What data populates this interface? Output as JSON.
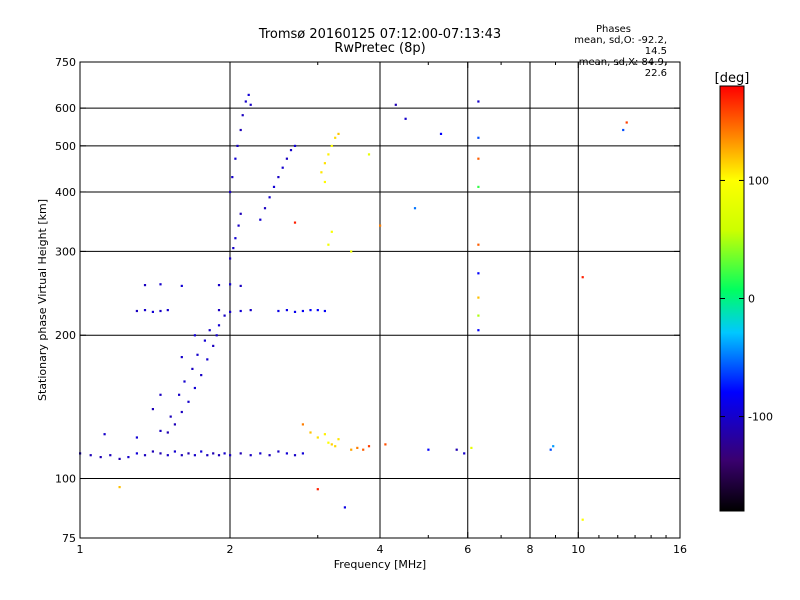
{
  "chart_data": {
    "type": "scatter",
    "title": "Tromsø 20160125 07:12:00-07:13:43",
    "subtitle": "RwPretec (8p)",
    "xlabel": "Frequency [MHz]",
    "ylabel": "Stationary phase Virtual Height [km]",
    "xscale": "log",
    "yscale": "log",
    "xlim": [
      1,
      16
    ],
    "ylim": [
      75,
      750
    ],
    "xticks": [
      1,
      2,
      4,
      6,
      8,
      10,
      16
    ],
    "xtick_labels": [
      "1",
      "2",
      "4",
      "6",
      "8",
      "10",
      "16"
    ],
    "xgrid": [
      2,
      4,
      6,
      8,
      10
    ],
    "yticks": [
      75,
      100,
      200,
      300,
      400,
      500,
      600,
      750
    ],
    "ytick_labels": [
      "75",
      "100",
      "200",
      "300",
      "400",
      "500",
      "600",
      "750"
    ],
    "ygrid": [
      100,
      200,
      300,
      400,
      500,
      600
    ],
    "grid": true,
    "phase_stats": {
      "title": "Phases",
      "line_o": "mean, sd,O: -92.2, 14.5",
      "line_x": "mean, sd,X:  84.9, 22.6"
    },
    "colorbar": {
      "label": "[deg]",
      "range": [
        -180,
        180
      ],
      "ticks": [
        -100,
        0,
        100
      ],
      "tick_labels": [
        "-100",
        "0",
        "100"
      ]
    },
    "points": [
      [
        1.0,
        113,
        -105
      ],
      [
        1.05,
        112,
        -108
      ],
      [
        1.1,
        111,
        -110
      ],
      [
        1.15,
        112,
        -106
      ],
      [
        1.2,
        110,
        -112
      ],
      [
        1.25,
        111,
        -100
      ],
      [
        1.3,
        113,
        -95
      ],
      [
        1.35,
        112,
        -104
      ],
      [
        1.4,
        114,
        -108
      ],
      [
        1.45,
        113,
        -110
      ],
      [
        1.5,
        112,
        -102
      ],
      [
        1.55,
        114,
        -98
      ],
      [
        1.6,
        112,
        -106
      ],
      [
        1.65,
        113,
        -112
      ],
      [
        1.7,
        112,
        -100
      ],
      [
        1.75,
        114,
        -96
      ],
      [
        1.8,
        112,
        -104
      ],
      [
        1.85,
        113,
        -110
      ],
      [
        1.9,
        112,
        -108
      ],
      [
        1.95,
        113,
        -100
      ],
      [
        2.0,
        112,
        -105
      ],
      [
        2.1,
        113,
        -110
      ],
      [
        2.2,
        112,
        -104
      ],
      [
        2.3,
        113,
        -100
      ],
      [
        2.4,
        112,
        -108
      ],
      [
        2.5,
        114,
        -103
      ],
      [
        2.6,
        113,
        -96
      ],
      [
        2.7,
        112,
        -101
      ],
      [
        2.8,
        113,
        -95
      ],
      [
        1.12,
        124,
        -100
      ],
      [
        1.3,
        122,
        -96
      ],
      [
        1.45,
        126,
        -104
      ],
      [
        1.55,
        130,
        -108
      ],
      [
        1.6,
        138,
        -104
      ],
      [
        1.65,
        145,
        -100
      ],
      [
        1.7,
        155,
        -96
      ],
      [
        1.75,
        165,
        -102
      ],
      [
        1.8,
        178,
        -98
      ],
      [
        1.85,
        190,
        -104
      ],
      [
        1.88,
        200,
        -100
      ],
      [
        1.9,
        210,
        -96
      ],
      [
        1.95,
        220,
        -102
      ],
      [
        1.5,
        125,
        -110
      ],
      [
        1.52,
        135,
        -106
      ],
      [
        1.58,
        150,
        -102
      ],
      [
        1.62,
        160,
        -98
      ],
      [
        1.68,
        170,
        -104
      ],
      [
        1.72,
        182,
        -100
      ],
      [
        1.78,
        195,
        -96
      ],
      [
        1.82,
        205,
        -102
      ],
      [
        1.4,
        140,
        -108
      ],
      [
        1.45,
        150,
        -104
      ],
      [
        1.6,
        180,
        -100
      ],
      [
        1.7,
        200,
        -96
      ],
      [
        2.0,
        290,
        -104
      ],
      [
        2.03,
        305,
        -100
      ],
      [
        2.05,
        320,
        -96
      ],
      [
        2.08,
        340,
        -102
      ],
      [
        2.1,
        360,
        -108
      ],
      [
        2.0,
        400,
        -104
      ],
      [
        2.02,
        430,
        -100
      ],
      [
        2.05,
        470,
        -96
      ],
      [
        2.07,
        500,
        -102
      ],
      [
        2.1,
        540,
        -108
      ],
      [
        2.12,
        580,
        -104
      ],
      [
        2.15,
        620,
        -100
      ],
      [
        2.18,
        640,
        -96
      ],
      [
        2.2,
        610,
        -102
      ],
      [
        2.3,
        350,
        -98
      ],
      [
        2.35,
        370,
        -104
      ],
      [
        2.4,
        390,
        -100
      ],
      [
        2.45,
        410,
        -96
      ],
      [
        2.5,
        430,
        -102
      ],
      [
        2.55,
        450,
        -98
      ],
      [
        2.6,
        470,
        -104
      ],
      [
        2.65,
        490,
        -100
      ],
      [
        2.7,
        500,
        -96
      ],
      [
        1.3,
        225,
        -104
      ],
      [
        1.35,
        226,
        -100
      ],
      [
        1.4,
        224,
        -96
      ],
      [
        1.45,
        225,
        -102
      ],
      [
        1.5,
        226,
        -98
      ],
      [
        1.9,
        226,
        -104
      ],
      [
        2.0,
        224,
        -100
      ],
      [
        2.1,
        225,
        -96
      ],
      [
        2.2,
        226,
        -102
      ],
      [
        2.5,
        225,
        -90
      ],
      [
        2.6,
        226,
        -88
      ],
      [
        2.7,
        224,
        -86
      ],
      [
        2.8,
        225,
        -84
      ],
      [
        2.9,
        226,
        -82
      ],
      [
        3.0,
        226,
        -80
      ],
      [
        3.1,
        225,
        -82
      ],
      [
        1.35,
        255,
        -104
      ],
      [
        1.45,
        256,
        -100
      ],
      [
        1.6,
        254,
        -96
      ],
      [
        1.9,
        255,
        -102
      ],
      [
        2.0,
        256,
        -98
      ],
      [
        2.1,
        254,
        -104
      ],
      [
        2.9,
        125,
        120
      ],
      [
        3.0,
        122,
        110
      ],
      [
        3.1,
        124,
        105
      ],
      [
        3.2,
        118,
        115
      ],
      [
        3.25,
        117,
        112
      ],
      [
        3.3,
        121,
        108
      ],
      [
        3.15,
        119,
        100
      ],
      [
        3.5,
        115,
        128
      ],
      [
        3.6,
        116,
        140
      ],
      [
        3.7,
        115,
        150
      ],
      [
        3.1,
        460,
        110
      ],
      [
        3.15,
        480,
        105
      ],
      [
        3.2,
        500,
        100
      ],
      [
        3.25,
        520,
        112
      ],
      [
        3.3,
        530,
        118
      ],
      [
        3.05,
        440,
        108
      ],
      [
        3.1,
        420,
        102
      ],
      [
        3.2,
        330,
        95
      ],
      [
        3.15,
        310,
        90
      ],
      [
        3.5,
        300,
        90
      ],
      [
        3.8,
        480,
        80
      ],
      [
        4.0,
        340,
        140
      ],
      [
        6.3,
        620,
        -100
      ],
      [
        6.3,
        520,
        -60
      ],
      [
        6.3,
        470,
        150
      ],
      [
        6.3,
        410,
        20
      ],
      [
        6.3,
        310,
        150
      ],
      [
        6.3,
        270,
        -80
      ],
      [
        6.3,
        240,
        120
      ],
      [
        6.3,
        220,
        50
      ],
      [
        6.3,
        205,
        -80
      ],
      [
        4.3,
        610,
        -110
      ],
      [
        4.5,
        570,
        -100
      ],
      [
        5.3,
        530,
        -80
      ],
      [
        4.7,
        370,
        -50
      ],
      [
        5.7,
        115,
        -110
      ],
      [
        5.9,
        113,
        -100
      ],
      [
        6.1,
        116,
        80
      ],
      [
        8.8,
        115,
        -60
      ],
      [
        8.9,
        117,
        -40
      ],
      [
        10.2,
        265,
        170
      ],
      [
        12.5,
        560,
        160
      ],
      [
        12.3,
        540,
        -60
      ],
      [
        3.8,
        117,
        160
      ],
      [
        4.1,
        118,
        155
      ],
      [
        5.0,
        115,
        -80
      ],
      [
        1.2,
        96,
        120
      ],
      [
        10.2,
        82,
        100
      ],
      [
        3.0,
        95,
        170
      ],
      [
        3.4,
        87,
        -90
      ],
      [
        2.8,
        130,
        140
      ],
      [
        2.7,
        345,
        170
      ]
    ]
  }
}
